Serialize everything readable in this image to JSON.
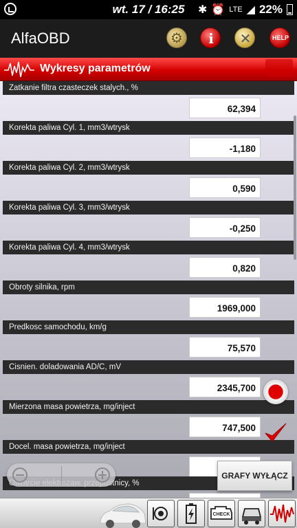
{
  "status_bar": {
    "time": "wt. 17 / 16:25",
    "network": "LTE",
    "battery": "22%"
  },
  "app": {
    "title": "AlfaOBD",
    "help_label": "HELP"
  },
  "section": {
    "title": "Wykresy parametrów"
  },
  "parameters": [
    {
      "label": "Zatkanie filtra czasteczek stalych., %",
      "value": "62,394"
    },
    {
      "label": "Korekta paliwa Cyl. 1, mm3/wtrysk",
      "value": "-1,180"
    },
    {
      "label": "Korekta paliwa Cyl. 2, mm3/wtrysk",
      "value": "0,590"
    },
    {
      "label": "Korekta paliwa Cyl. 3, mm3/wtrysk",
      "value": "-0,250"
    },
    {
      "label": "Korekta paliwa Cyl. 4, mm3/wtrysk",
      "value": "0,820"
    },
    {
      "label": "Obroty silnika, rpm",
      "value": "1969,000"
    },
    {
      "label": "Predkosc samochodu, km/g",
      "value": "75,570"
    },
    {
      "label": "Cisnien. doladowania AD/C, mV",
      "value": "2345,700"
    },
    {
      "label": "Mierzona masa powietrza, mg/inject",
      "value": "747,500"
    },
    {
      "label": "Docel. masa powietrza, mg/inject",
      "value": ""
    },
    {
      "label": "Otwarcie elektrozaw. przepustnicy, %",
      "value": ""
    }
  ],
  "graph_button_label": "GRAFY WYŁĄCZ",
  "bottom_toolbar": {
    "check_label": "CHECK"
  },
  "colors": {
    "header_red": "#d40000",
    "label_bar": "#2b2b2b",
    "record_red": "#e00000"
  }
}
